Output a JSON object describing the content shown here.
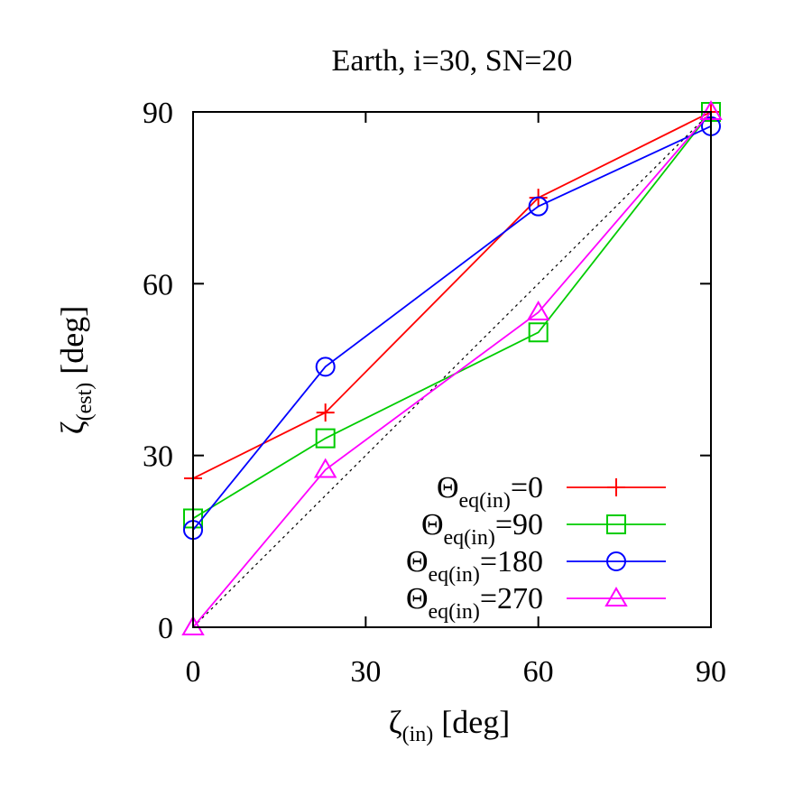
{
  "chart_data": {
    "type": "line",
    "title": "Earth, i=30, SN=20",
    "xlabel": {
      "symbol": "ζ",
      "sub": "(in)",
      "unit": " [deg]"
    },
    "ylabel": {
      "symbol": "ζ",
      "sub": "(est)",
      "unit": " [deg]"
    },
    "xlim": [
      0,
      90
    ],
    "ylim": [
      0,
      90
    ],
    "xticks": [
      0,
      30,
      60,
      90
    ],
    "yticks": [
      0,
      30,
      60,
      90
    ],
    "grid": false,
    "legend_position": "bottom-right",
    "reference_line": {
      "style": "dotted",
      "color": "#000000",
      "points": [
        [
          0,
          0
        ],
        [
          90,
          90
        ]
      ]
    },
    "series": [
      {
        "name": {
          "prefix": "Θ",
          "sub": "eq(in)",
          "suffix": "=0"
        },
        "marker": "plus",
        "color": "#ff0000",
        "points": [
          [
            0,
            26
          ],
          [
            23,
            37.5
          ],
          [
            60,
            75
          ],
          [
            90,
            90
          ]
        ]
      },
      {
        "name": {
          "prefix": "Θ",
          "sub": "eq(in)",
          "suffix": "=90"
        },
        "marker": "square",
        "color": "#00cc00",
        "points": [
          [
            0,
            19
          ],
          [
            23,
            33
          ],
          [
            60,
            51.5
          ],
          [
            90,
            90
          ]
        ]
      },
      {
        "name": {
          "prefix": "Θ",
          "sub": "eq(in)",
          "suffix": "=180"
        },
        "marker": "circle",
        "color": "#0000ff",
        "points": [
          [
            0,
            17
          ],
          [
            23,
            45.5
          ],
          [
            60,
            73.5
          ],
          [
            90,
            87.5
          ]
        ]
      },
      {
        "name": {
          "prefix": "Θ",
          "sub": "eq(in)",
          "suffix": "=270"
        },
        "marker": "triangle",
        "color": "#ff00ff",
        "points": [
          [
            0,
            0
          ],
          [
            23,
            27.5
          ],
          [
            60,
            55
          ],
          [
            90,
            90
          ]
        ]
      }
    ]
  }
}
